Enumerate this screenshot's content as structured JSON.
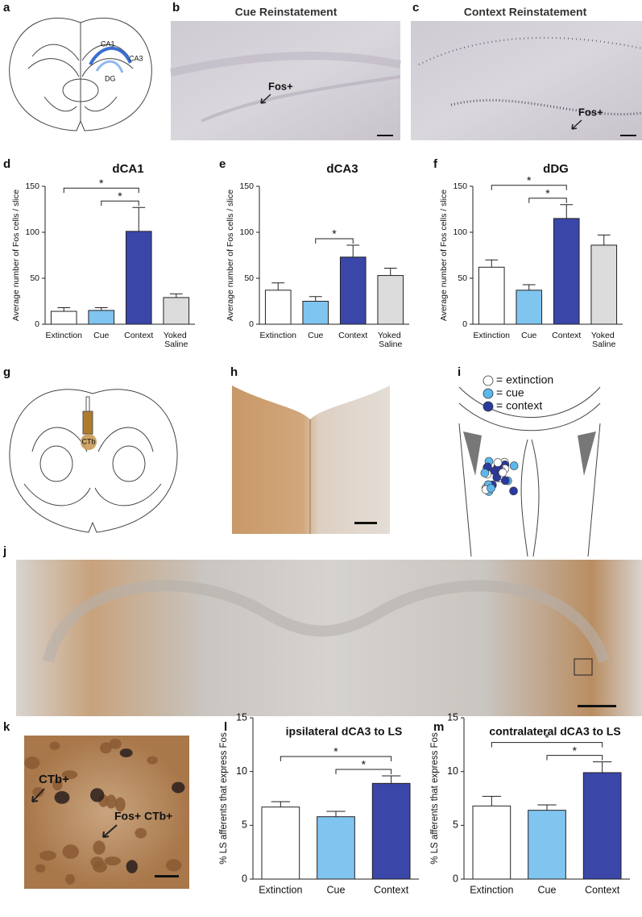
{
  "panel_labels": [
    "a",
    "b",
    "c",
    "d",
    "e",
    "f",
    "g",
    "h",
    "i",
    "j",
    "k",
    "l",
    "m"
  ],
  "images": {
    "b_title": "Cue Reinstatement",
    "c_title": "Context Reinstatement",
    "b_annotation": "Fos+",
    "c_annotation": "Fos+",
    "k_annotations": [
      "CTb+",
      "Fos+ CTb+"
    ]
  },
  "schematic_a": {
    "labels": [
      "CA1",
      "CA3",
      "DG"
    ]
  },
  "schematic_g": {
    "label": "CTb"
  },
  "schematic_i": {
    "legend": [
      {
        "label": "= extinction",
        "color": "#ffffff"
      },
      {
        "label": "= cue",
        "color": "#5bb8ec"
      },
      {
        "label": "= context",
        "color": "#2b3a9e"
      }
    ]
  },
  "chart_data": [
    {
      "type": "bar",
      "title": "dCA1",
      "y_label": "Average number of Fos cells / slice",
      "categories": [
        "Extinction",
        "Cue",
        "Context",
        "Yoked Saline"
      ],
      "values": [
        14,
        15,
        101,
        29
      ],
      "errors": [
        4,
        3,
        26,
        4
      ],
      "colors": [
        "#ffffff",
        "#80c4f0",
        "#3a46a8",
        "#dcdcdc"
      ],
      "ylim": [
        0,
        150
      ],
      "yticks": [
        0,
        50,
        100,
        150
      ],
      "significance": [
        {
          "pair": [
            "Cue",
            "Context"
          ],
          "label": "*"
        },
        {
          "pair": [
            "Extinction",
            "Context"
          ],
          "label": "*"
        }
      ]
    },
    {
      "type": "bar",
      "title": "dCA3",
      "y_label": "Average number of Fos cells / slice",
      "categories": [
        "Extinction",
        "Cue",
        "Context",
        "Yoked Saline"
      ],
      "values": [
        37,
        25,
        73,
        53
      ],
      "errors": [
        8,
        5,
        13,
        8
      ],
      "colors": [
        "#ffffff",
        "#80c4f0",
        "#3a46a8",
        "#dcdcdc"
      ],
      "ylim": [
        0,
        150
      ],
      "yticks": [
        0,
        50,
        100,
        150
      ],
      "significance": [
        {
          "pair": [
            "Cue",
            "Context"
          ],
          "label": "*"
        }
      ]
    },
    {
      "type": "bar",
      "title": "dDG",
      "y_label": "Average number of Fos cells / slice",
      "categories": [
        "Extinction",
        "Cue",
        "Context",
        "Yoked Saline"
      ],
      "values": [
        62,
        37,
        115,
        86
      ],
      "errors": [
        8,
        6,
        15,
        11
      ],
      "colors": [
        "#ffffff",
        "#80c4f0",
        "#3a46a8",
        "#dcdcdc"
      ],
      "ylim": [
        0,
        150
      ],
      "yticks": [
        0,
        50,
        100,
        150
      ],
      "significance": [
        {
          "pair": [
            "Cue",
            "Context"
          ],
          "label": "*"
        },
        {
          "pair": [
            "Extinction",
            "Context"
          ],
          "label": "*"
        }
      ]
    },
    {
      "type": "bar",
      "title": "ipsilateral dCA3 to LS",
      "y_label": "% LS afferents that express Fos",
      "categories": [
        "Extinction",
        "Cue",
        "Context"
      ],
      "values": [
        6.7,
        5.8,
        8.9
      ],
      "errors": [
        0.5,
        0.5,
        0.7
      ],
      "colors": [
        "#ffffff",
        "#80c4f0",
        "#3a46a8"
      ],
      "ylim": [
        0,
        15
      ],
      "yticks": [
        0,
        5,
        10,
        15
      ],
      "significance": [
        {
          "pair": [
            "Cue",
            "Context"
          ],
          "label": "*"
        },
        {
          "pair": [
            "Extinction",
            "Context"
          ],
          "label": "*"
        }
      ]
    },
    {
      "type": "bar",
      "title": "contralateral dCA3 to LS",
      "y_label": "% LS afferents that express Fos",
      "categories": [
        "Extinction",
        "Cue",
        "Context"
      ],
      "values": [
        6.8,
        6.4,
        9.9
      ],
      "errors": [
        0.9,
        0.5,
        1.0
      ],
      "colors": [
        "#ffffff",
        "#80c4f0",
        "#3a46a8"
      ],
      "ylim": [
        0,
        15
      ],
      "yticks": [
        0,
        5,
        10,
        15
      ],
      "significance": [
        {
          "pair": [
            "Cue",
            "Context"
          ],
          "label": "*"
        },
        {
          "pair": [
            "Extinction",
            "Context"
          ],
          "label": "*"
        }
      ]
    }
  ]
}
